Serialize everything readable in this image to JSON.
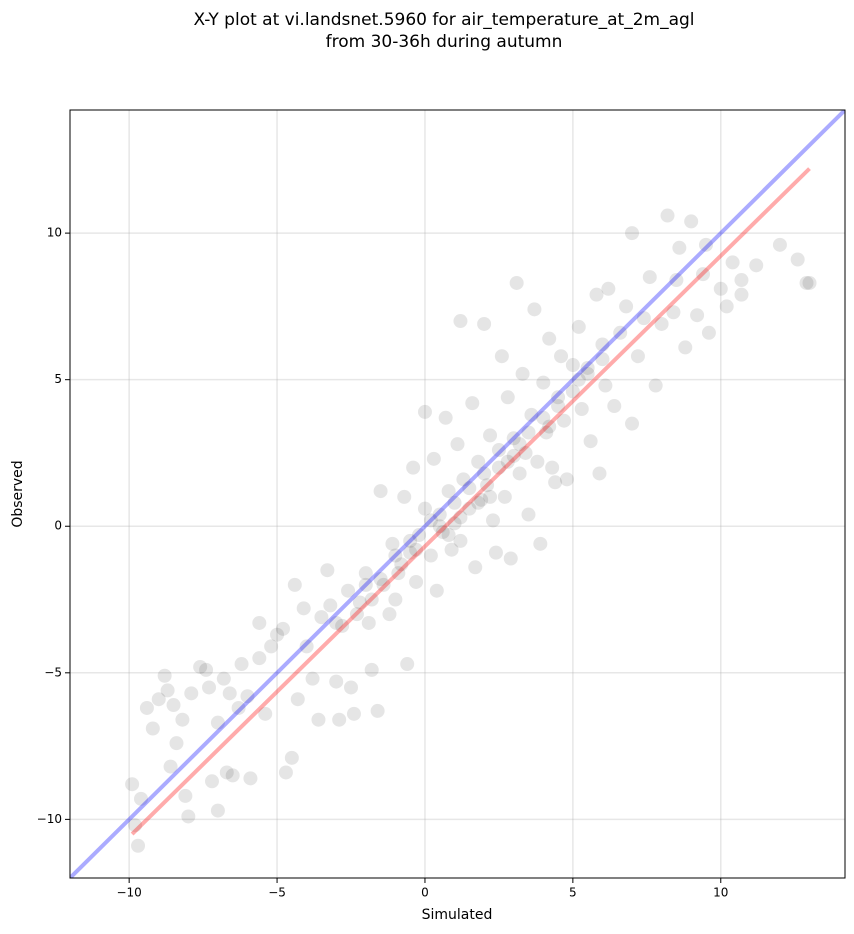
{
  "chart_data": {
    "type": "scatter",
    "title": "X-Y plot at vi.landsnet.5960 for air_temperature_at_2m_agl",
    "subtitle": "from 30-36h during autumn",
    "x_label": "Simulated",
    "y_label": "Observed",
    "xlim": [
      -12.0,
      14.2
    ],
    "ylim": [
      -12.0,
      14.2
    ],
    "xticks": [
      {
        "value": -10,
        "label": "−10"
      },
      {
        "value": -5,
        "label": "−5"
      },
      0,
      5,
      10
    ],
    "yticks": [
      {
        "value": -10,
        "label": "−10"
      },
      {
        "value": -5,
        "label": "−5"
      },
      0,
      5,
      10
    ],
    "grid": true,
    "color": "#000000",
    "x": [
      -9.9,
      -9.8,
      -9.7,
      -9.6,
      -9.4,
      -9.2,
      -9.0,
      -8.8,
      -8.7,
      -8.5,
      -8.6,
      -8.4,
      -8.2,
      -8.1,
      -8.0,
      -7.9,
      -7.6,
      -7.4,
      -7.3,
      -7.2,
      -7.0,
      -7.0,
      -6.8,
      -6.7,
      -6.6,
      -6.5,
      -6.3,
      -6.2,
      -6.0,
      -5.9,
      -5.6,
      -5.6,
      -5.4,
      -5.2,
      -5.0,
      -4.8,
      -4.7,
      -4.5,
      -4.4,
      -4.3,
      -4.1,
      -4.0,
      -3.8,
      -3.6,
      -3.5,
      -3.3,
      -3.2,
      -3.0,
      -2.9,
      -2.8,
      -2.6,
      -2.5,
      -2.4,
      -2.2,
      -2.0,
      -1.9,
      -1.8,
      -1.6,
      -1.5,
      -1.4,
      -1.2,
      -1.1,
      -1.0,
      -0.9,
      -0.7,
      -0.6,
      -0.5,
      -0.4,
      -0.3,
      -0.2,
      0,
      0,
      0.2,
      0.3,
      0.4,
      0.5,
      0.6,
      0.7,
      0.8,
      0.9,
      1.0,
      1.1,
      1.2,
      1.3,
      1.2,
      1.5,
      1.6,
      1.7,
      1.8,
      1.9,
      2.0,
      2.1,
      2.2,
      2.3,
      2.4,
      2.5,
      2.6,
      2.7,
      2.8,
      2.9,
      3.0,
      3.1,
      3.2,
      3.3,
      3.4,
      3.5,
      3.6,
      3.7,
      3.8,
      3.9,
      4.0,
      4.1,
      4.2,
      4.3,
      4.4,
      4.5,
      4.6,
      4.7,
      4.8,
      5.0,
      5.2,
      5.3,
      5.5,
      5.6,
      5.8,
      5.9,
      6.0,
      6.1,
      6.2,
      6.4,
      6.6,
      6.8,
      7.0,
      7.0,
      7.2,
      7.4,
      7.6,
      7.8,
      8.0,
      8.2,
      8.4,
      8.6,
      8.8,
      9.0,
      9.2,
      9.4,
      9.6,
      10.0,
      10.2,
      10.4,
      10.7,
      11.2,
      12.0,
      12.6,
      12.9,
      13.0,
      10.7,
      9.5,
      8.5,
      -2,
      -1.5,
      -1,
      -0.5,
      0.5,
      1,
      1.5,
      2,
      2.5,
      3,
      3.5,
      4,
      4.5,
      5,
      5.5,
      6,
      0.8,
      1.2,
      -0.8,
      -1.8,
      -2.3,
      -3,
      2.2,
      3.2,
      4.2,
      5.2,
      1.8,
      0.2,
      -0.3,
      2.8
    ],
    "y": [
      -8.8,
      -10.2,
      -10.9,
      -9.3,
      -6.2,
      -6.9,
      -5.9,
      -5.1,
      -5.6,
      -6.1,
      -8.2,
      -7.4,
      -6.6,
      -9.2,
      -9.9,
      -5.7,
      -4.8,
      -4.9,
      -5.5,
      -8.7,
      -9.7,
      -6.7,
      -5.2,
      -8.4,
      -5.7,
      -8.5,
      -6.2,
      -4.7,
      -5.8,
      -8.6,
      -4.5,
      -3.3,
      -6.4,
      -4.1,
      -3.7,
      -3.5,
      -8.4,
      -7.9,
      -2.0,
      -5.9,
      -2.8,
      -4.1,
      -5.2,
      -6.6,
      -3.1,
      -1.5,
      -2.7,
      -5.3,
      -6.6,
      -3.4,
      -2.2,
      -5.5,
      -6.4,
      -2.6,
      -1.6,
      -3.3,
      -4.9,
      -6.3,
      1.2,
      -2.0,
      -3.0,
      -0.6,
      -2.5,
      -1.6,
      1.0,
      -4.7,
      -0.9,
      2.0,
      -1.9,
      -0.3,
      0.6,
      3.9,
      -1.0,
      2.3,
      -2.2,
      0.4,
      -0.2,
      3.7,
      1.2,
      -0.8,
      0.1,
      2.8,
      -0.5,
      1.6,
      7.0,
      0.6,
      4.2,
      -1.4,
      2.2,
      0.9,
      6.9,
      1.4,
      3.1,
      0.2,
      -0.9,
      2.0,
      5.8,
      1.0,
      4.4,
      -1.1,
      3.0,
      8.3,
      1.8,
      5.2,
      2.5,
      0.4,
      3.8,
      7.4,
      2.2,
      -0.6,
      4.9,
      3.2,
      6.4,
      2.0,
      1.5,
      4.4,
      5.8,
      3.6,
      1.6,
      5.5,
      6.8,
      4.0,
      5.4,
      2.9,
      7.9,
      1.8,
      6.2,
      4.8,
      8.1,
      4.1,
      6.6,
      7.5,
      3.5,
      10.0,
      5.8,
      7.1,
      8.5,
      4.8,
      6.9,
      10.6,
      7.3,
      9.5,
      6.1,
      10.4,
      7.2,
      8.6,
      6.6,
      8.1,
      7.5,
      9.0,
      8.4,
      8.9,
      9.6,
      9.1,
      8.3,
      8.3,
      7.9,
      9.6,
      8.4,
      -2,
      -1.8,
      -1,
      -0.5,
      0,
      0.8,
      1.3,
      1.8,
      2.6,
      2.4,
      3.2,
      3.7,
      4.1,
      4.6,
      5.2,
      5.7,
      -0.3,
      0.3,
      -1.3,
      -2.5,
      -3,
      -3.3,
      1.0,
      2.8,
      3.4,
      5.0,
      0.8,
      0.2,
      -0.8,
      2.2
    ],
    "lines": [
      {
        "color": "#0000ff",
        "x": [
          -12.0,
          14.2
        ],
        "y": [
          -12.0,
          14.2
        ]
      },
      {
        "color": "#ff0000",
        "x": [
          -9.9,
          13.0
        ],
        "y": [
          -10.5,
          12.2
        ]
      }
    ]
  }
}
